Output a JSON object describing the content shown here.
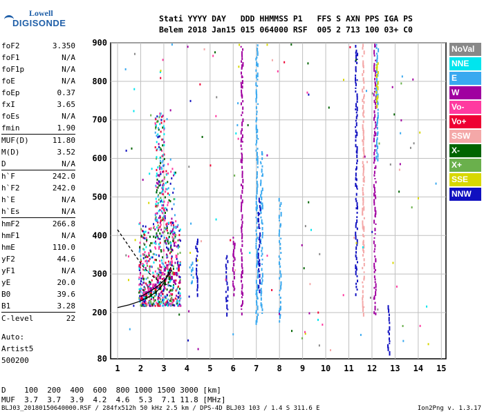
{
  "logo": {
    "line1": "Lowell",
    "line2": "DIGISONDE"
  },
  "header": {
    "labels": "Stati YYYY DAY   DDD HHMMSS P1   FFS S AXN PPS IGA PS",
    "values": "Belem 2018 Jan15 015 064000 RSF  005 2 713 100 03+ C0"
  },
  "params": [
    {
      "n": "foF2",
      "v": "3.350"
    },
    {
      "n": "foF1",
      "v": "N/A"
    },
    {
      "n": "foF1p",
      "v": "N/A"
    },
    {
      "n": "foE",
      "v": "N/A"
    },
    {
      "n": "foEp",
      "v": "0.37"
    },
    {
      "n": "fxI",
      "v": "3.65"
    },
    {
      "n": "foEs",
      "v": "N/A"
    },
    {
      "n": "fmin",
      "v": "1.90"
    },
    {
      "n": "MUF(D)",
      "v": "11.80"
    },
    {
      "n": "M(D)",
      "v": "3.52"
    },
    {
      "n": "D",
      "v": "N/A"
    },
    {
      "n": "h`F",
      "v": "242.0"
    },
    {
      "n": "h`F2",
      "v": "242.0"
    },
    {
      "n": "h`E",
      "v": "N/A"
    },
    {
      "n": "h`Es",
      "v": "N/A"
    },
    {
      "n": "hmF2",
      "v": "266.8"
    },
    {
      "n": "hmF1",
      "v": "N/A"
    },
    {
      "n": "hmE",
      "v": "110.0"
    },
    {
      "n": "yF2",
      "v": "44.6"
    },
    {
      "n": "yF1",
      "v": "N/A"
    },
    {
      "n": "yE",
      "v": "20.0"
    },
    {
      "n": "B0",
      "v": "39.6"
    },
    {
      "n": "B1",
      "v": "3.28"
    },
    {
      "n": "C-level",
      "v": "22"
    }
  ],
  "auto": [
    "Auto:",
    "Artist5",
    "500200"
  ],
  "legend": [
    {
      "label": "NoVal",
      "color": "#888888"
    },
    {
      "label": "NNE",
      "color": "#00e5ee"
    },
    {
      "label": "E",
      "color": "#3aa9f0"
    },
    {
      "label": "W",
      "color": "#a000a0"
    },
    {
      "label": "Vo-",
      "color": "#ff3aa0"
    },
    {
      "label": "Vo+",
      "color": "#ee0033"
    },
    {
      "label": "SSW",
      "color": "#f4a8a8"
    },
    {
      "label": "X-",
      "color": "#006400"
    },
    {
      "label": "X+",
      "color": "#6ab04c"
    },
    {
      "label": "SSE",
      "color": "#d8d800"
    },
    {
      "label": "NNW",
      "color": "#1010c0"
    }
  ],
  "muf_table": {
    "d_label": "D",
    "d_values": "100  200  400  600  800 1000 1500 3000 [km]",
    "m_label": "MUF",
    "m_values": "3.7  3.7  3.9  4.2  4.6  5.3  7.1 11.8 [MHz]"
  },
  "footer": {
    "left": "BLJ03_20180150640000.RSF / 284fx512h 50 kHz 2.5 km / DPS-4D BLJ03 103 / 1.4 S 311.6 E",
    "right": "Ion2Png v. 1.3.17"
  },
  "chart_data": {
    "type": "scatter",
    "title": "",
    "xlabel": "",
    "ylabel": "",
    "xlim": [
      0.7,
      15.2
    ],
    "ylim": [
      80,
      900
    ],
    "x_ticks": [
      1,
      2,
      3,
      4,
      5,
      6,
      7,
      8,
      9,
      10,
      11,
      12,
      13,
      14,
      15
    ],
    "y_ticks": [
      80,
      200,
      300,
      400,
      500,
      600,
      700,
      800,
      900
    ],
    "grid": true,
    "legend_position": "right",
    "traces": [
      {
        "color": "#a000a0",
        "x": [
          2.0,
          2.1,
          2.2,
          2.3,
          2.4,
          2.5,
          2.6,
          2.7,
          2.8,
          2.9,
          3.0,
          3.1,
          3.2,
          3.3,
          3.4,
          3.5,
          3.6
        ],
        "y": [
          240,
          245,
          250,
          255,
          260,
          265,
          270,
          280,
          290,
          300,
          310,
          320,
          300,
          290,
          280,
          300,
          320
        ]
      },
      {
        "color": "#ee0033",
        "x": [
          2.0,
          2.2,
          2.4,
          2.6,
          2.8,
          3.0,
          3.2,
          3.4,
          3.6
        ],
        "y": [
          235,
          242,
          248,
          258,
          268,
          280,
          290,
          300,
          310
        ]
      },
      {
        "color": "#ff3aa0",
        "x": [
          2.1,
          2.3,
          2.5,
          2.7,
          2.9,
          3.1,
          3.3,
          3.5
        ],
        "y": [
          250,
          260,
          270,
          285,
          300,
          315,
          330,
          345
        ]
      },
      {
        "color": "#006400",
        "x": [
          2.2,
          2.4,
          2.6,
          2.8,
          3.0,
          3.2
        ],
        "y": [
          238,
          244,
          252,
          262,
          274,
          288
        ]
      }
    ],
    "vertical_streaks": [
      {
        "color": "#a000a0",
        "x": 6.35,
        "y0": 200,
        "y1": 900
      },
      {
        "color": "#a000a0",
        "x": 6.0,
        "y0": 250,
        "y1": 400
      },
      {
        "color": "#3aa9f0",
        "x": 7.0,
        "y0": 180,
        "y1": 900
      },
      {
        "color": "#3aa9f0",
        "x": 7.2,
        "y0": 200,
        "y1": 620
      },
      {
        "color": "#1010c0",
        "x": 7.1,
        "y0": 260,
        "y1": 500
      },
      {
        "color": "#3aa9f0",
        "x": 8.0,
        "y0": 180,
        "y1": 500
      },
      {
        "color": "#1010c0",
        "x": 11.3,
        "y0": 250,
        "y1": 900
      },
      {
        "color": "#f4a8a8",
        "x": 11.6,
        "y0": 200,
        "y1": 900
      },
      {
        "color": "#a000a0",
        "x": 12.1,
        "y0": 200,
        "y1": 900
      },
      {
        "color": "#3aa9f0",
        "x": 12.2,
        "y0": 600,
        "y1": 900
      },
      {
        "color": "#d8d800",
        "x": 12.2,
        "y0": 740,
        "y1": 850
      },
      {
        "color": "#1010c0",
        "x": 4.4,
        "y0": 250,
        "y1": 400
      },
      {
        "color": "#1010c0",
        "x": 5.7,
        "y0": 200,
        "y1": 350
      },
      {
        "color": "#3aa9f0",
        "x": 4.2,
        "y0": 280,
        "y1": 340
      },
      {
        "color": "#1010c0",
        "x": 12.7,
        "y0": 100,
        "y1": 220
      }
    ],
    "clusters": [
      {
        "x": [
          1.9,
          3.7
        ],
        "y": [
          220,
          440
        ],
        "n": 600
      },
      {
        "x": [
          2.6,
          3.0
        ],
        "y": [
          440,
          720
        ],
        "n": 160
      },
      {
        "x": [
          3.0,
          3.5
        ],
        "y": [
          380,
          600
        ],
        "n": 80
      }
    ],
    "profile_curve": {
      "x": [
        1.0,
        1.5,
        2.0,
        2.4,
        2.7,
        2.9,
        3.0,
        3.1,
        3.2,
        3.3
      ],
      "y": [
        213,
        220,
        230,
        242,
        255,
        268,
        278,
        290,
        302,
        318
      ]
    },
    "profile_dashed": {
      "x": [
        1.0,
        1.4,
        1.8,
        2.1,
        2.4,
        2.7,
        3.0,
        3.35
      ],
      "y": [
        415,
        380,
        345,
        320,
        300,
        285,
        275,
        268
      ]
    },
    "profile_lower": {
      "x": [
        2.0,
        2.2,
        2.4,
        2.6,
        2.8,
        3.0,
        3.2,
        3.35
      ],
      "y": [
        242,
        248,
        255,
        263,
        272,
        283,
        296,
        310
      ]
    }
  }
}
